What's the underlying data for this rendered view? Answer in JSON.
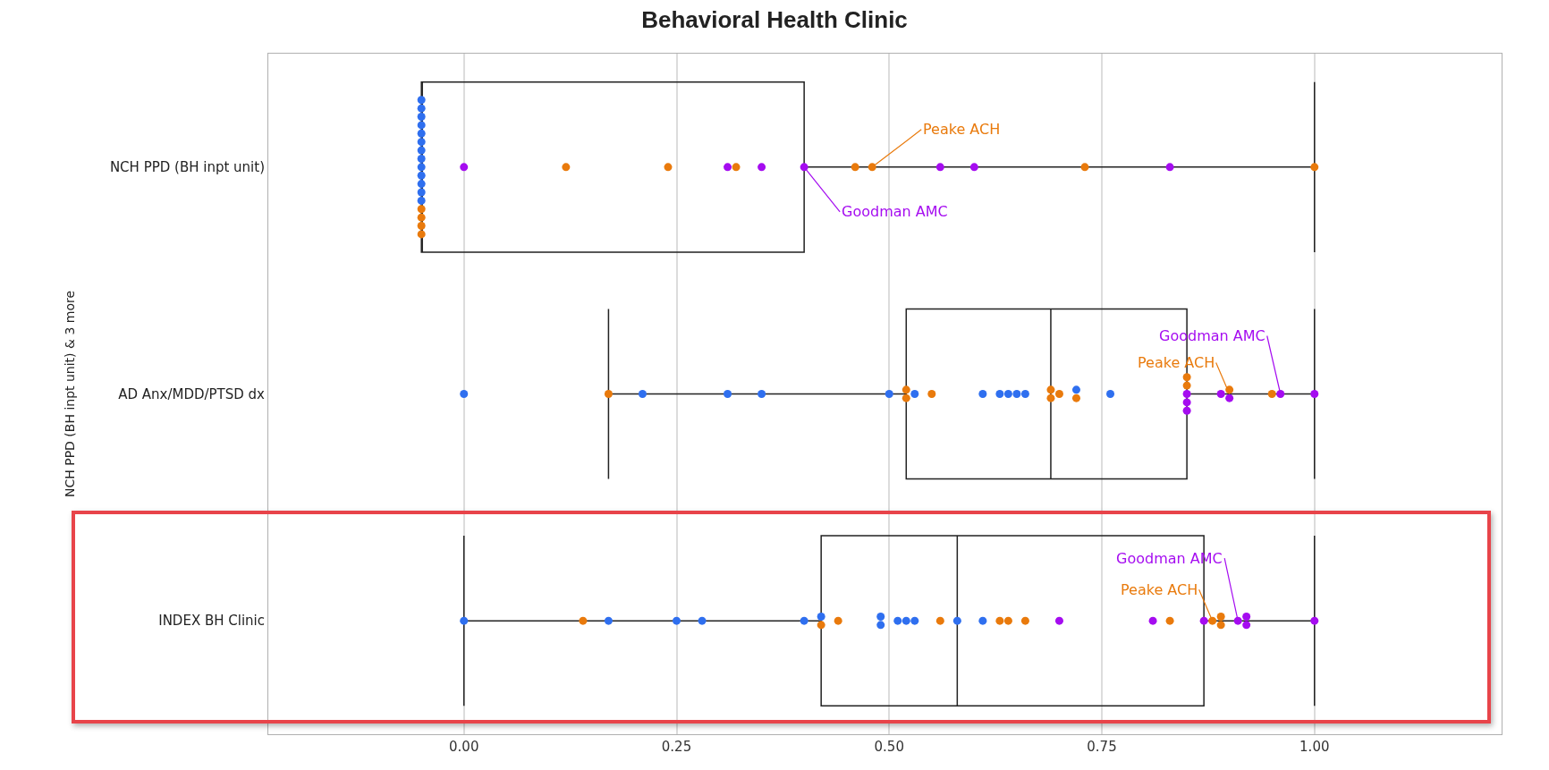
{
  "chart_data": {
    "type": "box",
    "title": "Behavioral Health Clinic",
    "ylabel": "NCH PPD (BH inpt unit) & 3 more",
    "orientation": "horizontal",
    "categories": [
      "NCH PPD (BH inpt unit)",
      "AD Anx/MDD/PTSD dx",
      "INDEX BH Clinic"
    ],
    "boxes": [
      {
        "low": -0.05,
        "q1": -0.05,
        "median": -0.05,
        "q3": 0.4,
        "high": 1.0
      },
      {
        "low": 0.17,
        "q1": 0.52,
        "median": 0.69,
        "q3": 0.85,
        "high": 1.0
      },
      {
        "low": 0.0,
        "q1": 0.42,
        "median": 0.58,
        "q3": 0.87,
        "high": 1.0
      }
    ],
    "xlim": [
      -0.23,
      1.22
    ],
    "xticks": [
      {
        "value": 0,
        "label": "0.00"
      },
      {
        "value": 0.25,
        "label": "0.25"
      },
      {
        "value": 0.5,
        "label": "0.50"
      },
      {
        "value": 0.75,
        "label": "0.75"
      },
      {
        "value": 1,
        "label": "1.00"
      }
    ],
    "grid": "x",
    "marker": "circle",
    "series": [
      {
        "type": "scatter",
        "color": "#2f6fef",
        "x": [
          "NCH PPD (BH inpt unit)",
          "NCH PPD (BH inpt unit)",
          "NCH PPD (BH inpt unit)",
          "NCH PPD (BH inpt unit)",
          "NCH PPD (BH inpt unit)",
          "NCH PPD (BH inpt unit)",
          "NCH PPD (BH inpt unit)",
          "NCH PPD (BH inpt unit)",
          "NCH PPD (BH inpt unit)",
          "NCH PPD (BH inpt unit)",
          "NCH PPD (BH inpt unit)",
          "NCH PPD (BH inpt unit)",
          "NCH PPD (BH inpt unit)",
          "AD Anx/MDD/PTSD dx",
          "AD Anx/MDD/PTSD dx",
          "AD Anx/MDD/PTSD dx",
          "AD Anx/MDD/PTSD dx",
          "AD Anx/MDD/PTSD dx",
          "AD Anx/MDD/PTSD dx",
          "AD Anx/MDD/PTSD dx",
          "AD Anx/MDD/PTSD dx",
          "AD Anx/MDD/PTSD dx",
          "AD Anx/MDD/PTSD dx",
          "AD Anx/MDD/PTSD dx",
          "AD Anx/MDD/PTSD dx",
          "AD Anx/MDD/PTSD dx",
          "INDEX BH Clinic",
          "INDEX BH Clinic",
          "INDEX BH Clinic",
          "INDEX BH Clinic",
          "INDEX BH Clinic",
          "INDEX BH Clinic",
          "INDEX BH Clinic",
          "INDEX BH Clinic",
          "INDEX BH Clinic",
          "INDEX BH Clinic",
          "INDEX BH Clinic",
          "INDEX BH Clinic",
          "INDEX BH Clinic"
        ],
        "values": [
          -0.05,
          -0.05,
          -0.05,
          -0.05,
          -0.05,
          -0.05,
          -0.05,
          -0.05,
          -0.05,
          -0.05,
          -0.05,
          -0.05,
          -0.05,
          0.0,
          0.21,
          0.31,
          0.35,
          0.5,
          0.53,
          0.61,
          0.63,
          0.64,
          0.65,
          0.66,
          0.72,
          0.76,
          0.0,
          0.17,
          0.25,
          0.28,
          0.4,
          0.42,
          0.49,
          0.49,
          0.51,
          0.52,
          0.53,
          0.58,
          0.61
        ]
      },
      {
        "type": "scatter",
        "color": "#e97a0c",
        "x": [
          "NCH PPD (BH inpt unit)",
          "NCH PPD (BH inpt unit)",
          "NCH PPD (BH inpt unit)",
          "NCH PPD (BH inpt unit)",
          "NCH PPD (BH inpt unit)",
          "NCH PPD (BH inpt unit)",
          "NCH PPD (BH inpt unit)",
          "NCH PPD (BH inpt unit)",
          "NCH PPD (BH inpt unit)",
          "NCH PPD (BH inpt unit)",
          "NCH PPD (BH inpt unit)",
          "AD Anx/MDD/PTSD dx",
          "AD Anx/MDD/PTSD dx",
          "AD Anx/MDD/PTSD dx",
          "AD Anx/MDD/PTSD dx",
          "AD Anx/MDD/PTSD dx",
          "AD Anx/MDD/PTSD dx",
          "AD Anx/MDD/PTSD dx",
          "AD Anx/MDD/PTSD dx",
          "AD Anx/MDD/PTSD dx",
          "AD Anx/MDD/PTSD dx",
          "AD Anx/MDD/PTSD dx",
          "AD Anx/MDD/PTSD dx",
          "INDEX BH Clinic",
          "INDEX BH Clinic",
          "INDEX BH Clinic",
          "INDEX BH Clinic",
          "INDEX BH Clinic",
          "INDEX BH Clinic",
          "INDEX BH Clinic",
          "INDEX BH Clinic",
          "INDEX BH Clinic",
          "INDEX BH Clinic",
          "INDEX BH Clinic"
        ],
        "values": [
          -0.05,
          -0.05,
          -0.05,
          -0.05,
          0.12,
          0.24,
          0.32,
          0.46,
          0.48,
          0.73,
          1.0,
          0.17,
          0.52,
          0.52,
          0.55,
          0.69,
          0.69,
          0.7,
          0.72,
          0.85,
          0.85,
          0.9,
          0.95,
          0.14,
          0.42,
          0.44,
          0.56,
          0.63,
          0.64,
          0.66,
          0.83,
          0.88,
          0.89,
          0.89
        ]
      },
      {
        "type": "scatter",
        "color": "#a50cf0",
        "x": [
          "NCH PPD (BH inpt unit)",
          "NCH PPD (BH inpt unit)",
          "NCH PPD (BH inpt unit)",
          "NCH PPD (BH inpt unit)",
          "NCH PPD (BH inpt unit)",
          "NCH PPD (BH inpt unit)",
          "NCH PPD (BH inpt unit)",
          "AD Anx/MDD/PTSD dx",
          "AD Anx/MDD/PTSD dx",
          "AD Anx/MDD/PTSD dx",
          "AD Anx/MDD/PTSD dx",
          "AD Anx/MDD/PTSD dx",
          "AD Anx/MDD/PTSD dx",
          "AD Anx/MDD/PTSD dx",
          "INDEX BH Clinic",
          "INDEX BH Clinic",
          "INDEX BH Clinic",
          "INDEX BH Clinic",
          "INDEX BH Clinic",
          "INDEX BH Clinic",
          "INDEX BH Clinic"
        ],
        "values": [
          0.0,
          0.31,
          0.35,
          0.4,
          0.56,
          0.6,
          0.83,
          0.85,
          0.85,
          0.85,
          0.89,
          0.9,
          0.96,
          1.0,
          0.7,
          0.81,
          0.87,
          0.91,
          0.92,
          0.92,
          1.0
        ]
      }
    ],
    "annotations": [
      {
        "text": "Peake ACH",
        "x": 0.48,
        "y": "NCH PPD (BH inpt unit)"
      },
      {
        "text": "Goodman AMC",
        "x": 0.4,
        "y": "NCH PPD (BH inpt unit)"
      },
      {
        "text": "Goodman AMC",
        "x": 0.96,
        "y": "AD Anx/MDD/PTSD dx"
      },
      {
        "text": "Peake ACH",
        "x": 0.9,
        "y": "AD Anx/MDD/PTSD dx"
      },
      {
        "text": "Goodman AMC",
        "x": 0.91,
        "y": "INDEX BH Clinic"
      },
      {
        "text": "Peake ACH",
        "x": 0.88,
        "y": "INDEX BH Clinic"
      }
    ]
  }
}
